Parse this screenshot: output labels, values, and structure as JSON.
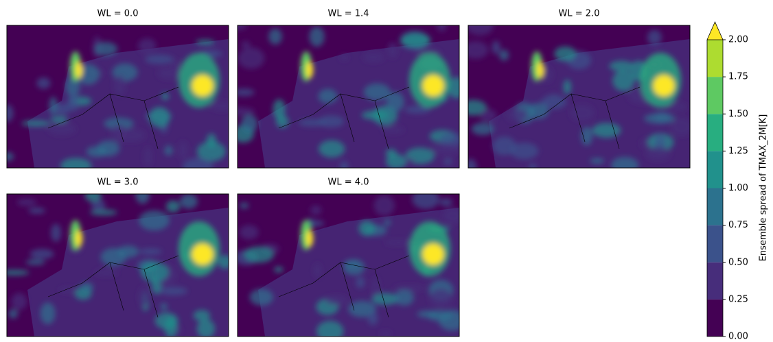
{
  "chart_data": {
    "type": "map-grid",
    "panels": [
      {
        "title": "WL = 0.0"
      },
      {
        "title": "WL = 1.4"
      },
      {
        "title": "WL = 2.0"
      },
      {
        "title": "WL = 3.0"
      },
      {
        "title": "WL = 4.0"
      }
    ],
    "colorbar": {
      "label": "Ensemble spread  of TMAX_2M[K]",
      "lim": [
        0,
        2
      ],
      "extend": "max",
      "over_color": "#fde725",
      "ticks": [
        {
          "value": 0,
          "label": "0.00"
        },
        {
          "value": 0.25,
          "label": "0.25"
        },
        {
          "value": 0.5,
          "label": "0.50"
        },
        {
          "value": 0.75,
          "label": "0.75"
        },
        {
          "value": 1,
          "label": "1.00"
        },
        {
          "value": 1.25,
          "label": "1.25"
        },
        {
          "value": 1.5,
          "label": "1.50"
        },
        {
          "value": 1.75,
          "label": "1.75"
        },
        {
          "value": 2,
          "label": "2.00"
        }
      ],
      "colors": [
        "#440154",
        "#472d7b",
        "#3b528b",
        "#2c728e",
        "#21918c",
        "#28ae80",
        "#5ec962",
        "#addc30"
      ]
    }
  }
}
